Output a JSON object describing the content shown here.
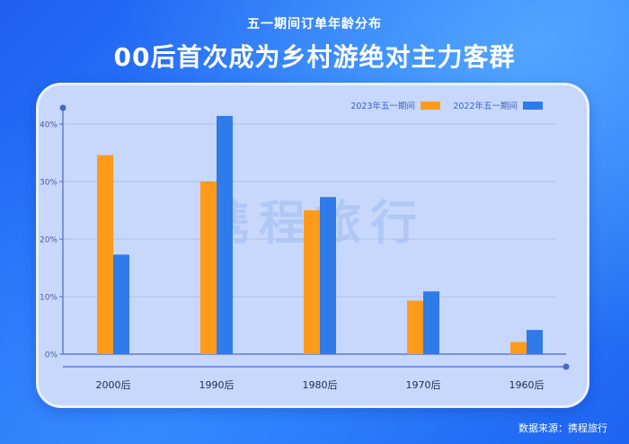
{
  "header": {
    "subtitle": "五一期间订单年龄分布",
    "title": "00后首次成为乡村游绝对主力客群"
  },
  "watermark": "携程旅行",
  "source": "数据来源：携程旅行",
  "colors": {
    "series_2023": "#ff9a1a",
    "series_2022": "#2f7bea",
    "axis": "#4a68c8",
    "grid": "#aebfe8",
    "tick_text": "#4d5e9e",
    "category_text": "#1e2b55",
    "legend_text": "#3d61c9",
    "watermark": "#b1c8f6"
  },
  "chart_data": {
    "type": "bar",
    "categories": [
      "2000后",
      "1990后",
      "1980后",
      "1970后",
      "1960后"
    ],
    "series": [
      {
        "name": "2023年五一期间",
        "values": [
          34.6,
          30.0,
          25.0,
          9.3,
          2.1
        ]
      },
      {
        "name": "2022年五一期间",
        "values": [
          17.3,
          41.4,
          27.3,
          10.9,
          4.2
        ]
      }
    ],
    "y_ticks": [
      "0%",
      "10%",
      "20%",
      "30%",
      "40%"
    ],
    "ylim": [
      0,
      40
    ],
    "grid": true,
    "legend_position": "top-right"
  }
}
